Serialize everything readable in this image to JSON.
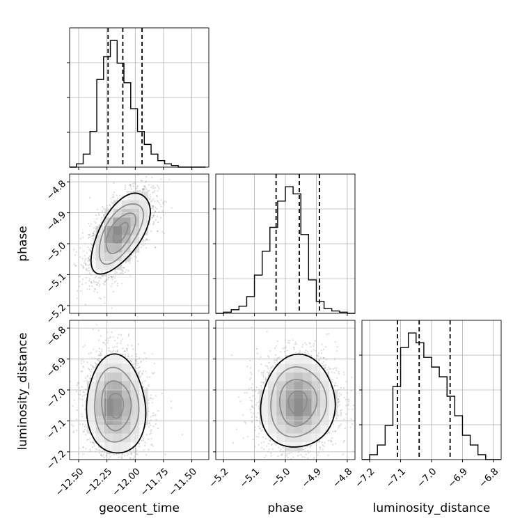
{
  "chart_data": {
    "type": "corner",
    "parameters": [
      "geocent_time",
      "phase",
      "luminosity_distance"
    ],
    "ranges": {
      "geocent_time": [
        -12.58,
        -11.35
      ],
      "phase": [
        -5.225,
        -4.775
      ],
      "luminosity_distance": [
        -7.225,
        -6.775
      ]
    },
    "ticks": {
      "geocent_time": [
        -12.5,
        -12.25,
        -12.0,
        -11.75,
        -11.5
      ],
      "phase": [
        -5.2,
        -5.1,
        -5.0,
        -4.9,
        -4.8
      ],
      "luminosity_distance": [
        -7.2,
        -7.1,
        -7.0,
        -6.9,
        -6.8
      ]
    },
    "tick_labels": {
      "geocent_time": [
        "−12.50",
        "−12.25",
        "−12.00",
        "−11.75",
        "−11.50"
      ],
      "phase": [
        "−5.2",
        "−5.1",
        "−5.0",
        "−4.9",
        "−4.8"
      ],
      "luminosity_distance": [
        "−7.2",
        "−7.1",
        "−7.0",
        "−6.9",
        "−6.8"
      ]
    },
    "quantiles": {
      "geocent_time": [
        -12.24,
        -12.11,
        -11.94
      ],
      "phase": [
        -5.03,
        -4.955,
        -4.89
      ],
      "luminosity_distance": [
        -7.11,
        -7.04,
        -6.94
      ]
    },
    "histograms": {
      "geocent_time": {
        "bin_edges": [
          -12.58,
          -12.52,
          -12.46,
          -12.4,
          -12.34,
          -12.28,
          -12.22,
          -12.16,
          -12.1,
          -12.04,
          -11.98,
          -11.92,
          -11.86,
          -11.8,
          -11.74,
          -11.68,
          -11.62,
          -11.56,
          -11.5,
          -11.44,
          -11.38
        ],
        "counts": [
          0,
          1,
          4,
          11,
          27,
          34,
          39,
          32,
          26,
          18,
          11,
          7,
          4,
          2,
          1,
          0.5,
          0,
          0,
          0,
          0
        ]
      },
      "phase": {
        "bin_edges": [
          -5.225,
          -5.2,
          -5.175,
          -5.15,
          -5.125,
          -5.1,
          -5.075,
          -5.05,
          -5.025,
          -5.0,
          -4.975,
          -4.95,
          -4.925,
          -4.9,
          -4.875,
          -4.85,
          -4.825,
          -4.8,
          -4.775
        ],
        "counts": [
          0,
          0.5,
          1.5,
          3,
          7,
          16,
          26,
          36,
          47,
          53,
          50,
          33,
          14,
          5,
          2,
          1,
          0.5,
          0
        ]
      },
      "luminosity_distance": {
        "bin_edges": [
          -7.225,
          -7.2,
          -7.175,
          -7.15,
          -7.125,
          -7.1,
          -7.075,
          -7.05,
          -7.025,
          -7.0,
          -6.975,
          -6.95,
          -6.925,
          -6.9,
          -6.875,
          -6.85,
          -6.825,
          -6.8,
          -6.775
        ],
        "counts": [
          0,
          1,
          3,
          7,
          15,
          23,
          26,
          24,
          21,
          19,
          17,
          13,
          9,
          5,
          3,
          1,
          0,
          0
        ]
      }
    },
    "pairs": [
      {
        "x": "geocent_time",
        "y": "phase",
        "mean": [
          -12.13,
          -4.965
        ],
        "std": [
          0.13,
          0.065
        ],
        "correlation": 0.6,
        "density_peaks": [
          [
            -12.21,
            -4.965
          ],
          [
            -12.14,
            -4.94
          ]
        ]
      },
      {
        "x": "geocent_time",
        "y": "luminosity_distance",
        "mean": [
          -12.17,
          -7.05
        ],
        "std": [
          0.13,
          0.08
        ],
        "correlation": -0.05,
        "density_peaks": [
          [
            -12.23,
            -7.065
          ],
          [
            -12.2,
            -6.99
          ]
        ]
      },
      {
        "x": "phase",
        "y": "luminosity_distance",
        "mean": [
          -4.96,
          -7.04
        ],
        "std": [
          0.06,
          0.075
        ],
        "correlation": 0.05,
        "density_peaks": [
          [
            -4.955,
            -7.065
          ],
          [
            -4.96,
            -6.99
          ]
        ]
      }
    ],
    "grid": true,
    "colors": {
      "contour": "#000000",
      "points": "#7f7f7f",
      "frame": "#000000"
    }
  }
}
